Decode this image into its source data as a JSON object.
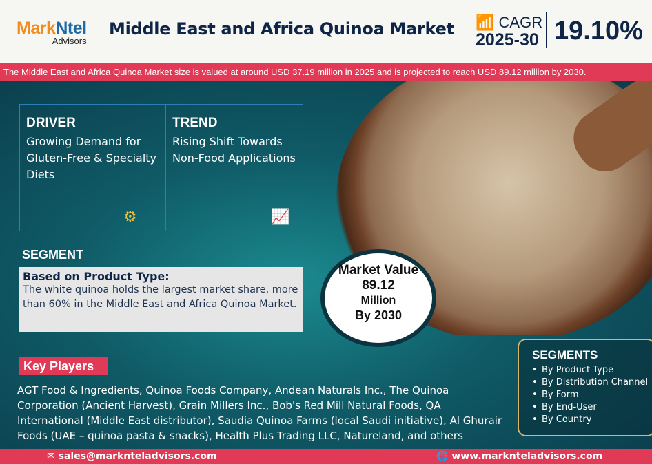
{
  "header": {
    "logo_brand": "MarkNtel",
    "logo_sub": "Advisors",
    "title": "Middle East and Africa Quinoa Market",
    "cagr_label": "CAGR",
    "cagr_period": "2025-30",
    "cagr_value": "19.10%"
  },
  "banner": "The Middle East and Africa Quinoa Market size is valued at around USD 37.19 million in 2025 and is projected to reach USD 89.12 million by 2030.",
  "driver": {
    "heading": "DRIVER",
    "text": "Growing Demand for Gluten-Free & Specialty Diets"
  },
  "trend": {
    "heading": "TREND",
    "text": "Rising Shift Towards Non-Food Applications"
  },
  "segment": {
    "heading": "SEGMENT",
    "title": "Based on Product Type:",
    "text": "The white quinoa holds the largest market share, more than 60% in the Middle East and Africa Quinoa Market."
  },
  "market_value": {
    "label": "Market Value",
    "value": "89.12",
    "unit": "Million",
    "year": "By 2030"
  },
  "key_players": {
    "heading": "Key Players",
    "text": "AGT Food & Ingredients, Quinoa Foods Company, Andean Naturals Inc., The Quinoa Corporation (Ancient Harvest), Grain Millers Inc., Bob's Red Mill Natural Foods, QA International (Middle East distributor), Saudia Quinoa Farms (local Saudi initiative), Al Ghurair Foods (UAE – quinoa pasta & snacks), Health Plus Trading LLC, Natureland, and others"
  },
  "segments": {
    "heading": "SEGMENTS",
    "items": [
      "By Product Type",
      "By Distribution Channel",
      "By Form",
      "By End-User",
      "By Country"
    ]
  },
  "footer": {
    "email": "sales@marknteladvisors.com",
    "website": "www.marknteladvisors.com"
  },
  "colors": {
    "accent": "#e03a56",
    "navy": "#0f2547",
    "teal": "#0f5a66",
    "gold": "#d7b56b"
  }
}
